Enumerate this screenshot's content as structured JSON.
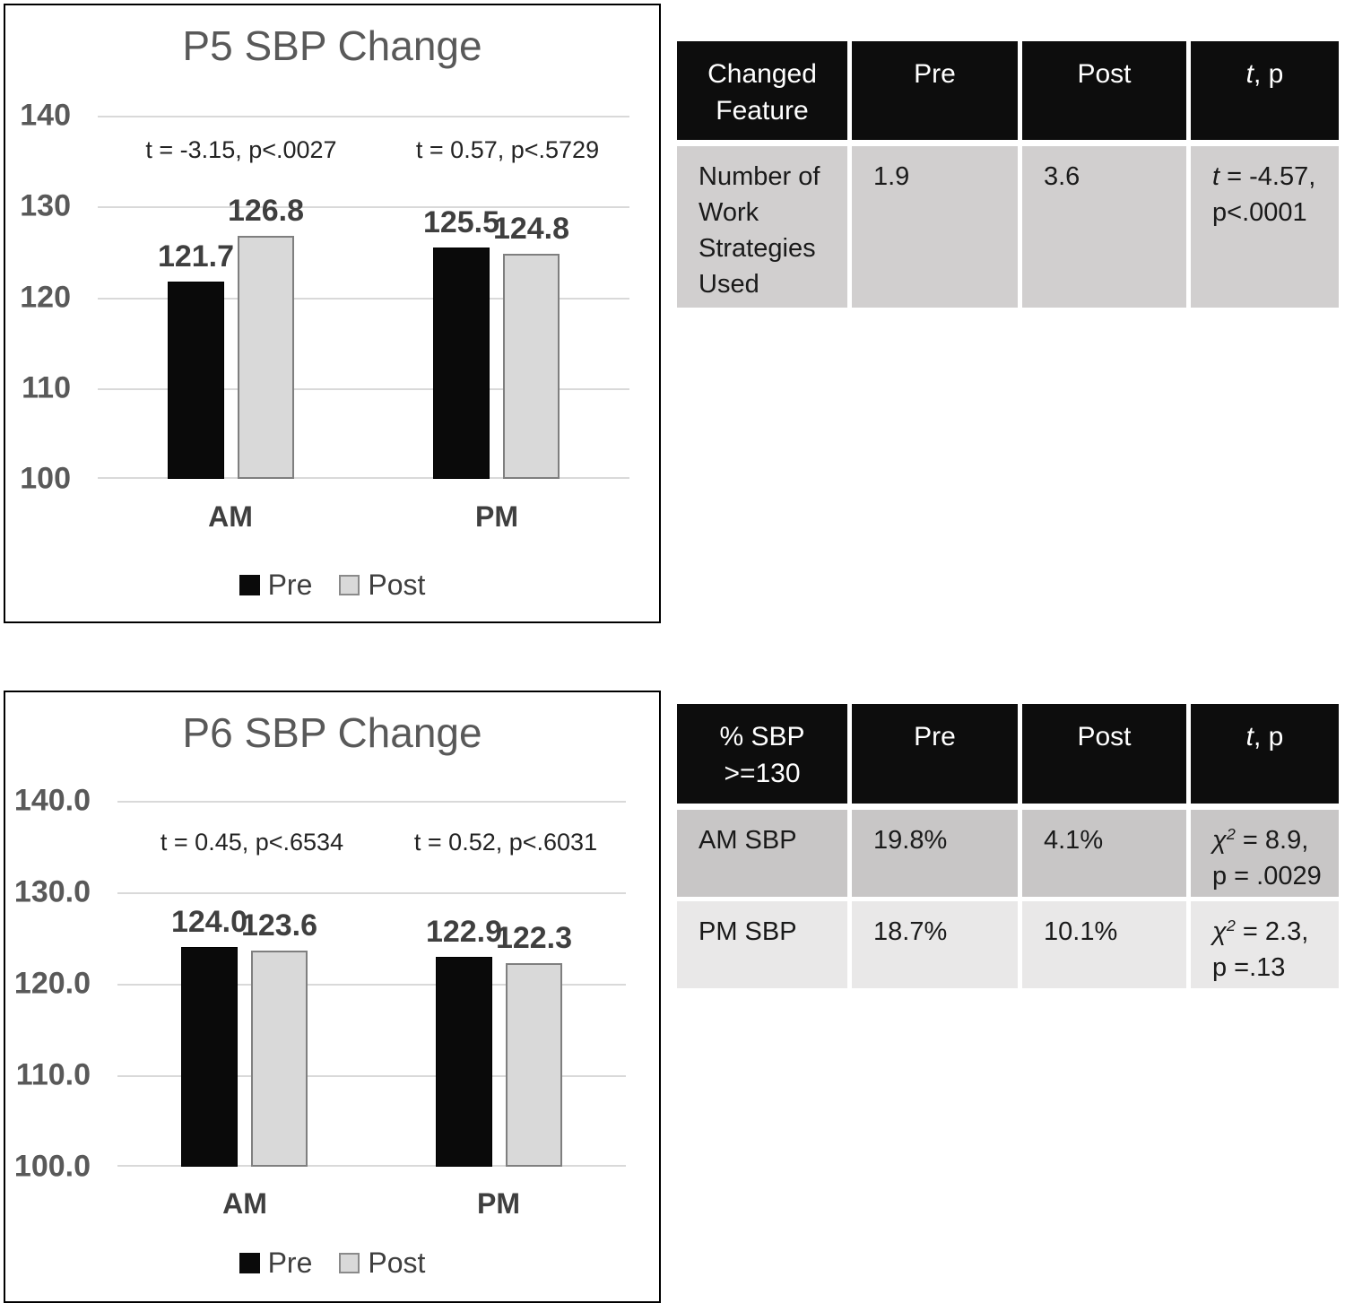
{
  "colors": {
    "pre_bar": "#0a0a0a",
    "post_bar": "#d9d9d9",
    "post_bar_border": "#7f7f7f",
    "gridline": "#d9d9d9",
    "axis_text": "#595959",
    "table_header_bg": "#0d0d0d",
    "table_header_text": "#ffffff",
    "table_row_top": "#d1cfcf",
    "table_row_dark": "#c8c6c6",
    "table_row_light": "#e9e8e8"
  },
  "chart_data": [
    {
      "id": "p5-sbp-change",
      "type": "bar",
      "title": "P5 SBP Change",
      "categories": [
        "AM",
        "PM"
      ],
      "series": [
        {
          "name": "Pre",
          "color": "#0a0a0a",
          "values": [
            121.7,
            125.5
          ]
        },
        {
          "name": "Post",
          "color": "#d9d9d9",
          "values": [
            126.8,
            124.8
          ]
        }
      ],
      "data_labels": [
        [
          "121.7",
          "126.8"
        ],
        [
          "125.5",
          "124.8"
        ]
      ],
      "annotations": [
        "t = -3.15, p<.0027",
        "t = 0.57, p<.5729"
      ],
      "ylim": [
        100,
        140
      ],
      "yticks": [
        "140",
        "130",
        "120",
        "110",
        "100"
      ],
      "grid": true,
      "legend_position": "bottom"
    },
    {
      "id": "p6-sbp-change",
      "type": "bar",
      "title": "P6 SBP Change",
      "categories": [
        "AM",
        "PM"
      ],
      "series": [
        {
          "name": "Pre",
          "color": "#0a0a0a",
          "values": [
            124.0,
            122.9
          ]
        },
        {
          "name": "Post",
          "color": "#d9d9d9",
          "values": [
            123.6,
            122.3
          ]
        }
      ],
      "data_labels": [
        [
          "124.0",
          "123.6"
        ],
        [
          "122.9",
          "122.3"
        ]
      ],
      "annotations": [
        "t = 0.45, p<.6534",
        "t = 0.52, p<.6031"
      ],
      "ylim": [
        100,
        140
      ],
      "yticks": [
        "140.0",
        "130.0",
        "120.0",
        "110.0",
        "100.0"
      ],
      "grid": true,
      "legend_position": "bottom"
    },
    {
      "id": "work-strategies-table",
      "type": "table",
      "columns": [
        {
          "lines": [
            [
              {
                "s": "n",
                "t": "Changed"
              }
            ],
            [
              {
                "s": "n",
                "t": "Feature"
              }
            ]
          ]
        },
        {
          "lines": [
            [
              {
                "s": "n",
                "t": "Pre"
              }
            ]
          ]
        },
        {
          "lines": [
            [
              {
                "s": "n",
                "t": "Post"
              }
            ]
          ]
        },
        {
          "lines": [
            [
              {
                "s": "i",
                "t": "t"
              },
              {
                "s": "n",
                "t": ", p"
              }
            ]
          ]
        }
      ],
      "rows": [
        [
          "Number of Work Strategies Used",
          "1.9",
          "3.6",
          {
            "lines": [
              [
                {
                  "s": "i",
                  "t": "t"
                },
                {
                  "s": "n",
                  "t": " = -4.57,"
                }
              ],
              [
                {
                  "s": "n",
                  "t": "p<.0001"
                }
              ]
            ]
          }
        ]
      ]
    },
    {
      "id": "sbp-threshold-table",
      "type": "table",
      "columns": [
        {
          "lines": [
            [
              {
                "s": "n",
                "t": "% SBP"
              }
            ],
            [
              {
                "s": "n",
                "t": ">=130"
              }
            ]
          ]
        },
        {
          "lines": [
            [
              {
                "s": "n",
                "t": "Pre"
              }
            ]
          ]
        },
        {
          "lines": [
            [
              {
                "s": "n",
                "t": "Post"
              }
            ]
          ]
        },
        {
          "lines": [
            [
              {
                "s": "i",
                "t": "t"
              },
              {
                "s": "n",
                "t": ", p"
              }
            ]
          ]
        }
      ],
      "rows": [
        [
          "AM SBP",
          "19.8%",
          "4.1%",
          {
            "lines": [
              [
                {
                  "s": "i",
                  "t": "χ"
                },
                {
                  "s": "sup",
                  "t": "2"
                },
                {
                  "s": "n",
                  "t": " = 8.9,"
                }
              ],
              [
                {
                  "s": "n",
                  "t": "p = .0029"
                }
              ]
            ]
          }
        ],
        [
          "PM SBP",
          "18.7%",
          "10.1%",
          {
            "lines": [
              [
                {
                  "s": "i",
                  "t": "χ"
                },
                {
                  "s": "sup",
                  "t": "2"
                },
                {
                  "s": "n",
                  "t": " = 2.3,"
                }
              ],
              [
                {
                  "s": "n",
                  "t": "p =.13"
                }
              ]
            ]
          }
        ]
      ]
    }
  ]
}
